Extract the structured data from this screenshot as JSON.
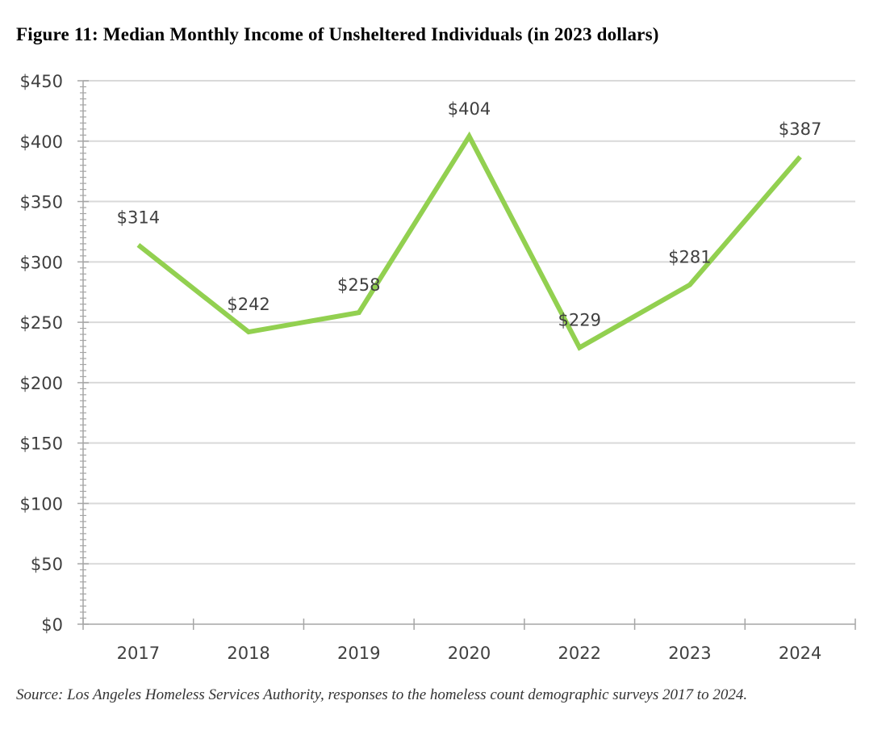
{
  "title": "Figure 11: Median Monthly Income of Unsheltered Individuals (in 2023 dollars)",
  "source": "Source: Los Angeles Homeless Services Authority, responses to the homeless count demographic surveys 2017 to 2024.",
  "chart_data": {
    "type": "line",
    "title": "Figure 11: Median Monthly Income of Unsheltered Individuals (in 2023 dollars)",
    "xlabel": "",
    "ylabel": "",
    "categories": [
      "2017",
      "2018",
      "2019",
      "2020",
      "2022",
      "2023",
      "2024"
    ],
    "series": [
      {
        "values": [
          314,
          242,
          258,
          404,
          229,
          281,
          387
        ],
        "labels": [
          "$314",
          "$242",
          "$258",
          "$404",
          "$229",
          "$281",
          "$387"
        ],
        "color": "#92d050"
      }
    ],
    "ylim": [
      0,
      450
    ],
    "yticks": [
      0,
      50,
      100,
      150,
      200,
      250,
      300,
      350,
      400,
      450
    ],
    "ytick_labels": [
      "$0",
      "$50",
      "$100",
      "$150",
      "$200",
      "$250",
      "$300",
      "$350",
      "$400",
      "$450"
    ],
    "grid": true,
    "legend": "none"
  }
}
